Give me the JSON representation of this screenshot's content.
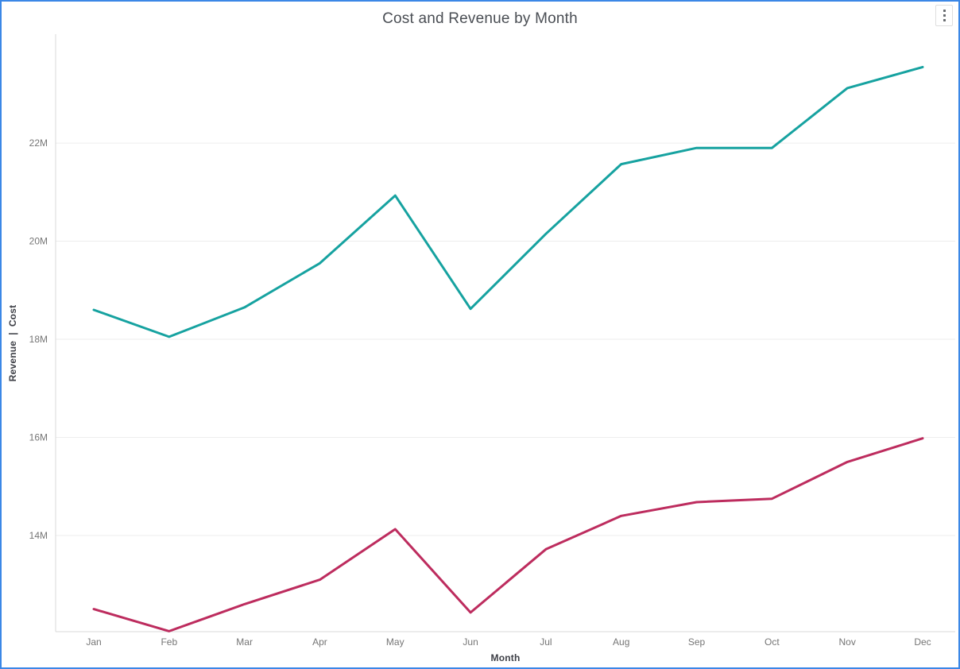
{
  "window": {
    "menu_tooltip": "More options",
    "menu_icon": "kebab-vertical-dots"
  },
  "colors": {
    "revenue_line": "#16A2A0",
    "cost_line": "#BD2C5E",
    "focus_border": "#3B87E6",
    "gridline": "#EDEDED",
    "axis_line": "#D9D9D9",
    "tick_label": "#757575",
    "axis_title": "#3D3F46",
    "chart_title": "#4A4E54"
  },
  "chart_data": {
    "type": "line",
    "title": "Cost and Revenue by Month",
    "xlabel": "Month",
    "ylabel": "Revenue  |  Cost",
    "categories": [
      "Jan",
      "Feb",
      "Mar",
      "Apr",
      "May",
      "Jun",
      "Jul",
      "Aug",
      "Sep",
      "Oct",
      "Nov",
      "Dec"
    ],
    "series": [
      {
        "name": "Revenue",
        "color": "#16A2A0",
        "values": [
          18.6,
          18.05,
          18.65,
          19.55,
          20.93,
          18.62,
          20.15,
          21.57,
          21.9,
          21.9,
          23.12,
          23.55
        ]
      },
      {
        "name": "Cost",
        "color": "#BD2C5E",
        "values": [
          12.5,
          12.05,
          12.6,
          13.1,
          14.13,
          12.43,
          13.72,
          14.4,
          14.68,
          14.75,
          15.5,
          15.98
        ]
      }
    ],
    "unit": "M",
    "yticks": [
      14,
      16,
      18,
      20,
      22
    ],
    "ytick_labels": [
      "14M",
      "16M",
      "18M",
      "20M",
      "22M"
    ],
    "ylim": [
      12.04,
      24.22
    ],
    "grid": "horizontal-only",
    "legend": "none"
  }
}
